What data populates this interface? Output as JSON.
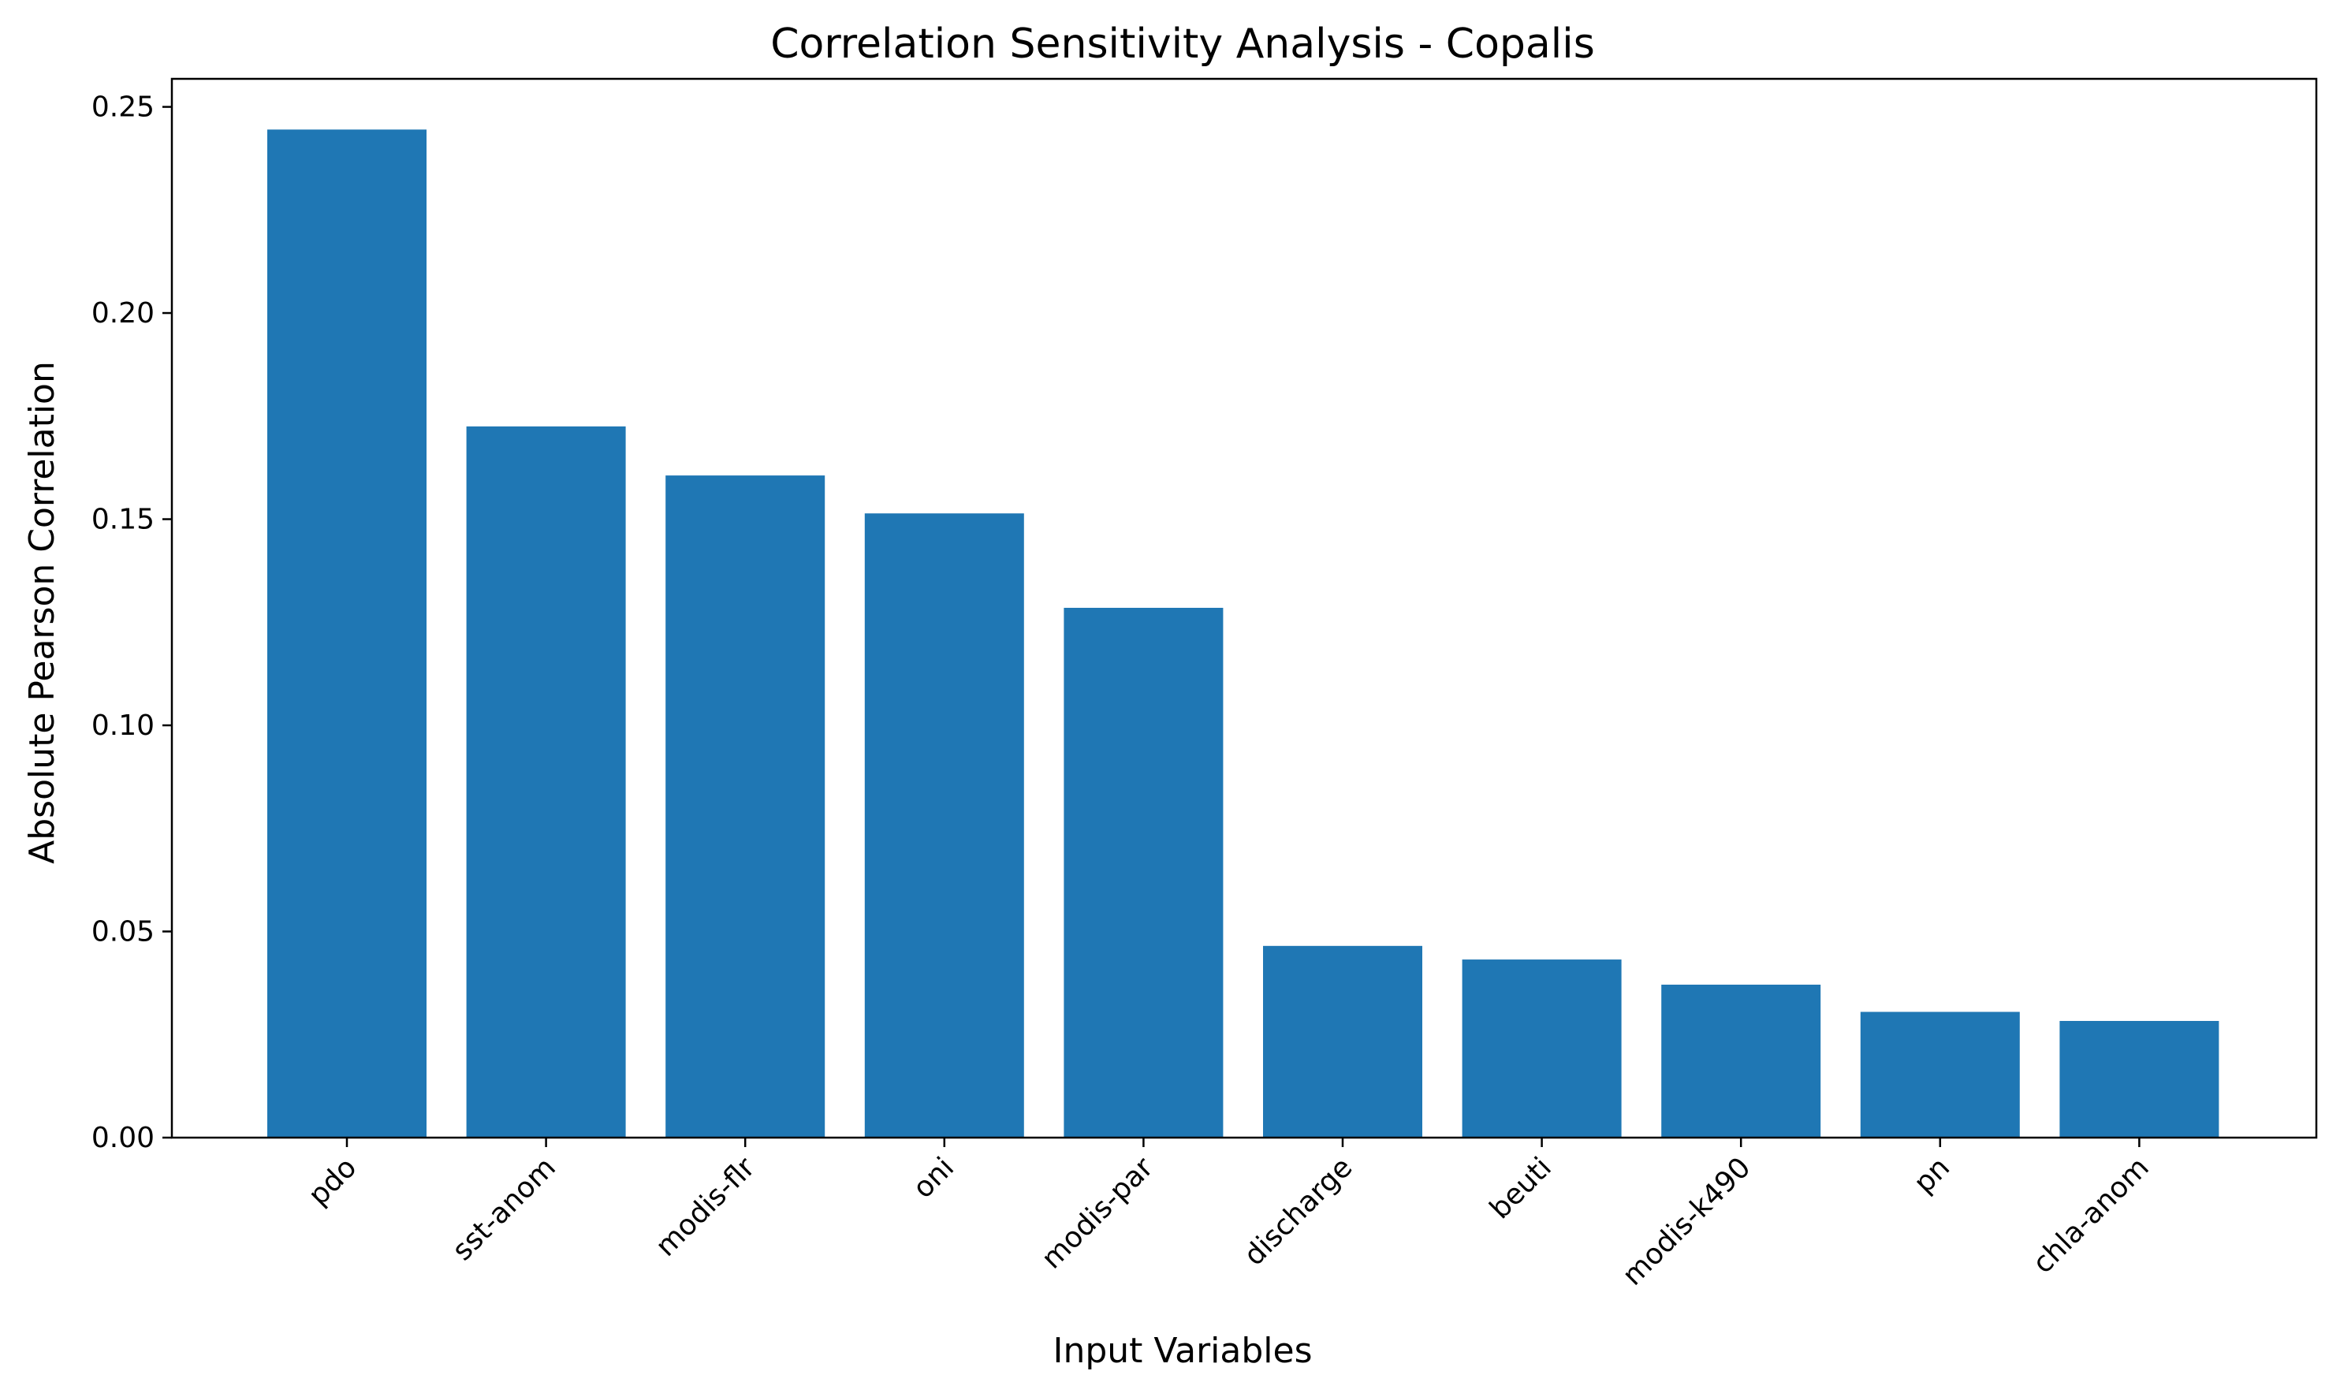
{
  "chart_data": {
    "type": "bar",
    "title": "Correlation Sensitivity Analysis - Copalis",
    "xlabel": "Input Variables",
    "ylabel": "Absolute Pearson Correlation",
    "categories": [
      "pdo",
      "sst-anom",
      "modis-flr",
      "oni",
      "modis-par",
      "discharge",
      "beuti",
      "modis-k490",
      "pn",
      "chla-anom"
    ],
    "values": [
      0.2445,
      0.1725,
      0.1606,
      0.1514,
      0.1285,
      0.0465,
      0.0432,
      0.0371,
      0.0305,
      0.0283
    ],
    "ylim": [
      0,
      0.2568
    ],
    "yticks": [
      0.0,
      0.05,
      0.1,
      0.15,
      0.2,
      0.25
    ],
    "ytick_labels": [
      "0.00",
      "0.05",
      "0.10",
      "0.15",
      "0.20",
      "0.25"
    ],
    "bar_color": "#1f77b4",
    "grid": false,
    "legend": "none"
  }
}
